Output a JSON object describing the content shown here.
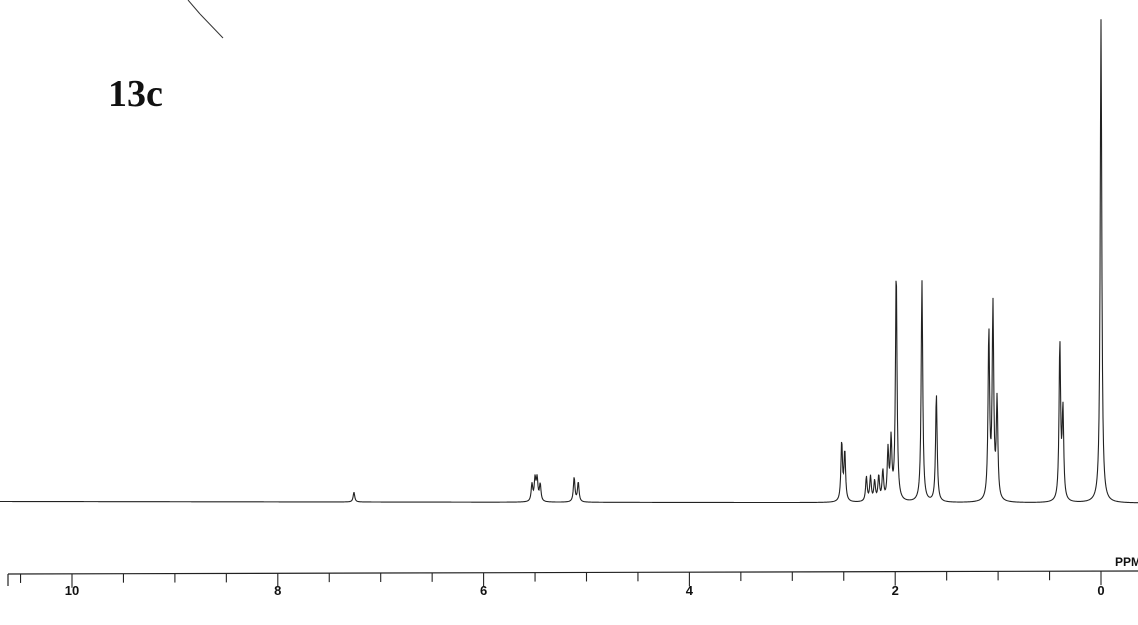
{
  "compound_label": "13c",
  "chart_data": {
    "type": "line",
    "title": "",
    "xlabel": "PPM",
    "ylabel": "",
    "x_reversed": true,
    "xlim": [
      10.6,
      -0.2
    ],
    "ylim": [
      0,
      1.0
    ],
    "tick_labels": [
      "10",
      "8",
      "6",
      "4",
      "2",
      "0"
    ],
    "tick_values": [
      10,
      8,
      6,
      4,
      2,
      0
    ],
    "grid": false,
    "series": [
      {
        "peaks": [
          {
            "ppm": 7.26,
            "height": 0.02
          },
          {
            "ppm": 5.53,
            "height": 0.035
          },
          {
            "ppm": 5.5,
            "height": 0.045
          },
          {
            "ppm": 5.48,
            "height": 0.045
          },
          {
            "ppm": 5.45,
            "height": 0.035
          },
          {
            "ppm": 5.12,
            "height": 0.05
          },
          {
            "ppm": 5.08,
            "height": 0.04
          },
          {
            "ppm": 2.52,
            "height": 0.12
          },
          {
            "ppm": 2.49,
            "height": 0.1
          },
          {
            "ppm": 2.28,
            "height": 0.05
          },
          {
            "ppm": 2.24,
            "height": 0.05
          },
          {
            "ppm": 2.2,
            "height": 0.04
          },
          {
            "ppm": 2.16,
            "height": 0.05
          },
          {
            "ppm": 2.12,
            "height": 0.06
          },
          {
            "ppm": 2.07,
            "height": 0.1
          },
          {
            "ppm": 2.04,
            "height": 0.12
          },
          {
            "ppm": 1.99,
            "height": 0.47
          },
          {
            "ppm": 1.74,
            "height": 0.45
          },
          {
            "ppm": 1.6,
            "height": 0.22
          },
          {
            "ppm": 1.09,
            "height": 0.34
          },
          {
            "ppm": 1.05,
            "height": 0.39
          },
          {
            "ppm": 1.01,
            "height": 0.2
          },
          {
            "ppm": 0.4,
            "height": 0.32
          },
          {
            "ppm": 0.37,
            "height": 0.18
          },
          {
            "ppm": 0.0,
            "height": 0.98
          }
        ]
      }
    ]
  }
}
